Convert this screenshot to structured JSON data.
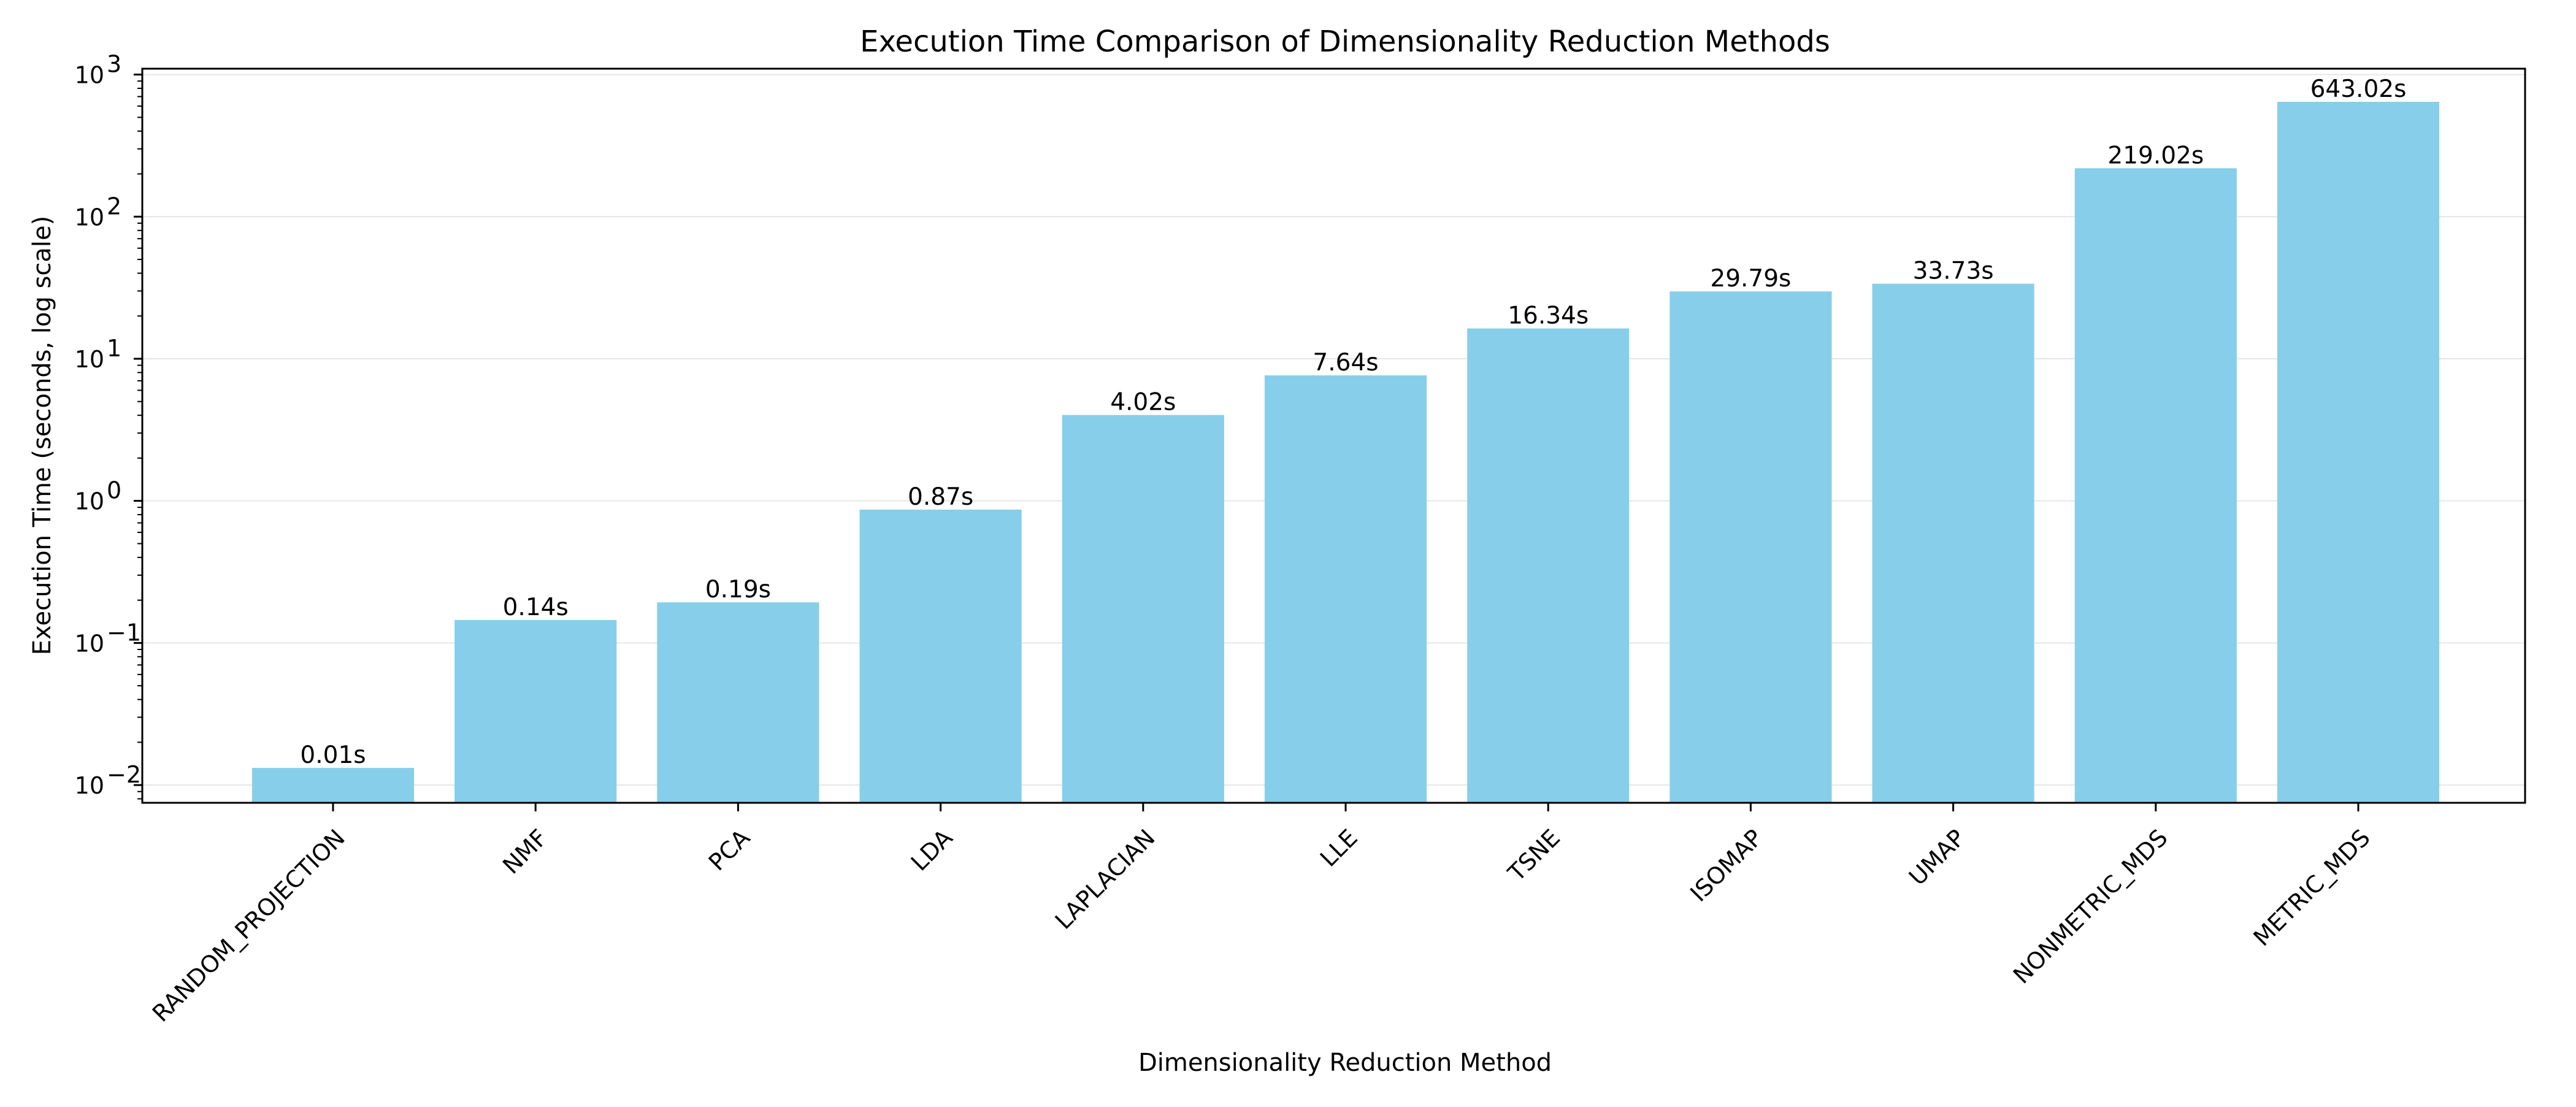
{
  "chart_data": {
    "type": "bar",
    "title": "Execution Time Comparison of Dimensionality Reduction Methods",
    "xlabel": "Dimensionality Reduction Method",
    "ylabel": "Execution Time (seconds, log scale)",
    "yscale": "log",
    "ylim": [
      0.0075,
      1100
    ],
    "grid": "y-major",
    "legend": "none",
    "categories": [
      "RANDOM_PROJECTION",
      "NMF",
      "PCA",
      "LDA",
      "LAPLACIAN",
      "LLE",
      "TSNE",
      "ISOMAP",
      "UMAP",
      "NONMETRIC_MDS",
      "METRIC_MDS"
    ],
    "values": [
      0.0132,
      0.145,
      0.193,
      0.868,
      4.02,
      7.64,
      16.34,
      29.79,
      33.73,
      219.02,
      643.02
    ],
    "value_labels": [
      "0.01s",
      "0.14s",
      "0.19s",
      "0.87s",
      "4.02s",
      "7.64s",
      "16.34s",
      "29.79s",
      "33.73s",
      "219.02s",
      "643.02s"
    ],
    "y_ticks": [
      {
        "value": 0.01,
        "base": "10",
        "exp": "−2"
      },
      {
        "value": 0.1,
        "base": "10",
        "exp": "−1"
      },
      {
        "value": 1,
        "base": "10",
        "exp": "0"
      },
      {
        "value": 10,
        "base": "10",
        "exp": "1"
      },
      {
        "value": 100,
        "base": "10",
        "exp": "2"
      },
      {
        "value": 1000,
        "base": "10",
        "exp": "3"
      }
    ],
    "bar_color": "#87ceeb",
    "grid_color": "#e6e6e6"
  }
}
